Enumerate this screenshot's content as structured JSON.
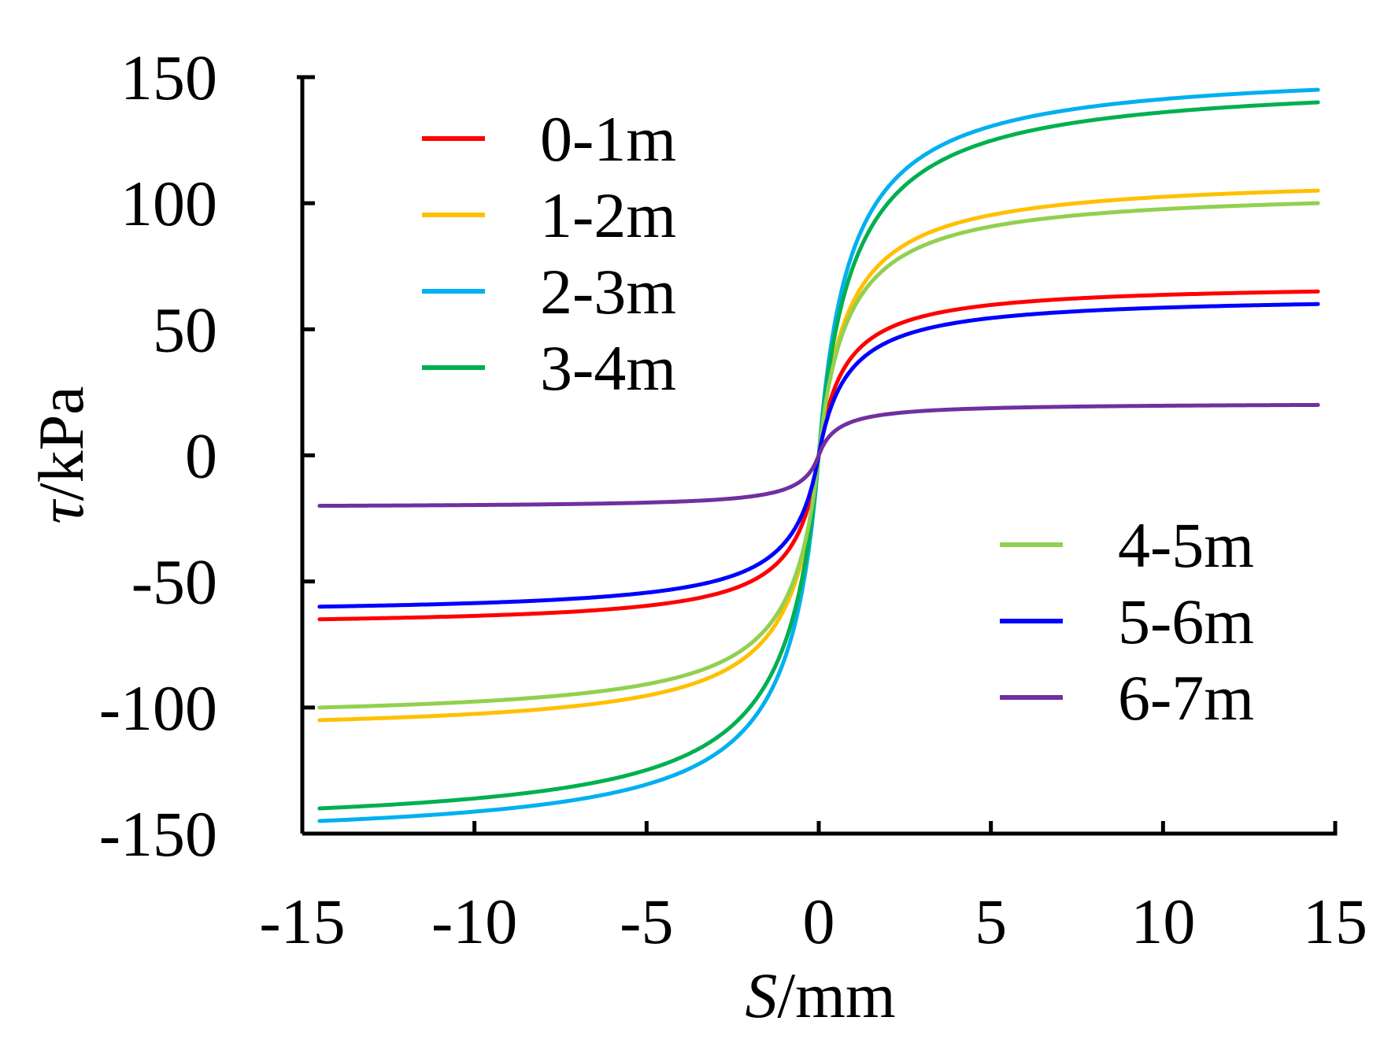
{
  "chart_data": {
    "type": "line",
    "title": "",
    "xlabel_symbol": "S",
    "xlabel_unit": "/mm",
    "ylabel_symbol": "τ",
    "ylabel_unit": "/kPa",
    "xlim": [
      -15,
      15
    ],
    "ylim": [
      -150,
      150
    ],
    "xticks": [
      -15,
      -10,
      -5,
      0,
      5,
      10,
      15
    ],
    "yticks": [
      -150,
      -100,
      -50,
      0,
      50,
      100,
      150
    ],
    "xtick_labels": [
      "-15",
      "-10",
      "-5",
      "0",
      "5",
      "10",
      "15"
    ],
    "ytick_labels": [
      "-150",
      "-100",
      "-50",
      "0",
      "50",
      "100",
      "150"
    ],
    "x_range": [
      -14.5,
      14.5
    ],
    "grid": false,
    "curve_model": "hyperbolic: tau = S / (a + b*|S|)",
    "series": [
      {
        "name": "0-1m",
        "color": "#ff0000",
        "tau_ult": 70,
        "tau_at_0_5mm": 28,
        "tau_at_14_5mm": 65,
        "legend": "left"
      },
      {
        "name": "1-2m",
        "color": "#ffc000",
        "tau_ult": 112,
        "tau_at_0_5mm": 42,
        "tau_at_14_5mm": 105,
        "legend": "left"
      },
      {
        "name": "2-3m",
        "color": "#00b0f0",
        "tau_ult": 157,
        "tau_at_0_5mm": 55,
        "tau_at_14_5mm": 145,
        "legend": "left"
      },
      {
        "name": "3-4m",
        "color": "#00b050",
        "tau_ult": 150,
        "tau_at_0_5mm": 50,
        "tau_at_14_5mm": 140,
        "legend": "left"
      },
      {
        "name": "4-5m",
        "color": "#92d050",
        "tau_ult": 107,
        "tau_at_0_5mm": 40,
        "tau_at_14_5mm": 100,
        "legend": "right"
      },
      {
        "name": "5-6m",
        "color": "#0000ff",
        "tau_ult": 65,
        "tau_at_0_5mm": 24,
        "tau_at_14_5mm": 60,
        "legend": "right"
      },
      {
        "name": "6-7m",
        "color": "#7030a0",
        "tau_ult": 21,
        "tau_at_0_5mm": 10,
        "tau_at_14_5mm": 20,
        "legend": "right"
      }
    ]
  }
}
